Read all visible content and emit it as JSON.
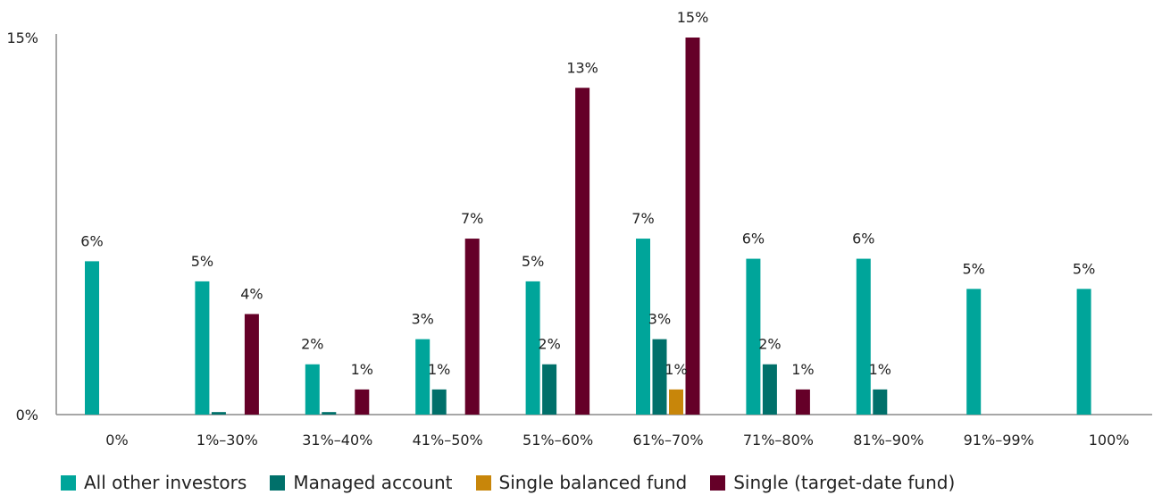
{
  "chart_data": {
    "type": "bar",
    "title": "",
    "xlabel": "",
    "ylabel": "",
    "ylim": [
      0,
      15
    ],
    "y_tick_labels": [
      "0%",
      "15%"
    ],
    "y_ticks": [
      0,
      15
    ],
    "grid": false,
    "legend_position": "bottom",
    "categories": [
      "0%",
      "1%–30%",
      "31%–40%",
      "41%–50%",
      "51%–60%",
      "61%–70%",
      "71%–80%",
      "81%–90%",
      "91%–99%",
      "100%"
    ],
    "series": [
      {
        "name": "All other investors",
        "color": "#00A59A",
        "values": [
          6.1,
          5.3,
          2.0,
          3.0,
          5.3,
          7.0,
          6.2,
          6.2,
          5.0,
          5.0
        ],
        "labels": [
          "6%",
          "5%",
          "2%",
          "3%",
          "5%",
          "7%",
          "6%",
          "6%",
          "5%",
          "5%"
        ]
      },
      {
        "name": "Managed account",
        "color": "#00706A",
        "values": [
          0,
          0.1,
          0.1,
          1.0,
          2.0,
          3.0,
          2.0,
          1.0,
          0,
          0
        ],
        "labels": [
          "",
          "",
          "",
          "1%",
          "2%",
          "3%",
          "2%",
          "1%",
          "",
          ""
        ]
      },
      {
        "name": "Single balanced fund",
        "color": "#C8860A",
        "values": [
          0,
          0,
          0,
          0,
          0,
          1.0,
          0,
          0,
          0,
          0
        ],
        "labels": [
          "",
          "",
          "",
          "",
          "",
          "1%",
          "",
          "",
          "",
          ""
        ]
      },
      {
        "name": "Single (target-date fund)",
        "color": "#650028",
        "values": [
          0,
          4.0,
          1.0,
          7.0,
          13.0,
          15.0,
          1.0,
          0,
          0,
          0
        ],
        "labels": [
          "",
          "4%",
          "1%",
          "7%",
          "13%",
          "15%",
          "1%",
          "",
          "",
          ""
        ]
      }
    ]
  }
}
